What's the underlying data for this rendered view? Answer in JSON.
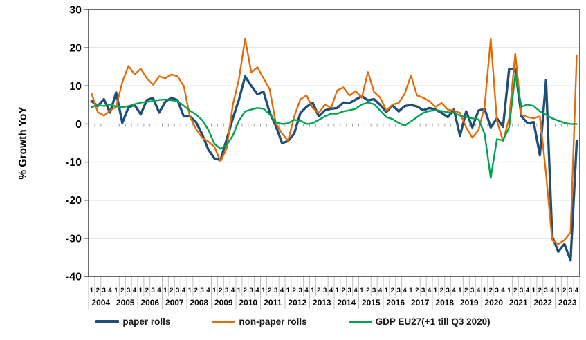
{
  "chart_data": {
    "type": "line",
    "title": "",
    "ylabel": "% Growth YoY",
    "ylim": [
      -40,
      30
    ],
    "y_ticks": [
      30,
      20,
      10,
      0,
      -10,
      -20,
      -30,
      -40
    ],
    "grid": "horizontal-only",
    "legend_position": "bottom-center",
    "x": {
      "quarters": [
        "1",
        "2",
        "3",
        "4"
      ],
      "years": [
        "2004",
        "2005",
        "2006",
        "2007",
        "2008",
        "2009",
        "2010",
        "2011",
        "2012",
        "2013",
        "2014",
        "2015",
        "2016",
        "2017",
        "2018",
        "2019",
        "2020",
        "2021",
        "2022",
        "2023"
      ]
    },
    "colors": {
      "grid": "#BFBFBF",
      "axis_border": "#1a1a1a",
      "tick_separator": "#C0C0C0",
      "zero_axis": "#9A9A9A"
    },
    "series": [
      {
        "name": "paper rolls",
        "id": "paper-rolls",
        "color": "#1F4E79",
        "width": 3.4,
        "values": [
          6,
          4.7,
          6.5,
          3,
          8.3,
          0.3,
          4.4,
          5,
          2.5,
          6.3,
          6.8,
          3,
          5.8,
          6.9,
          6.2,
          2,
          2,
          0.5,
          -2.7,
          -6.7,
          -9,
          -9.5,
          -4,
          1.5,
          6.4,
          12.5,
          10,
          7.8,
          8.5,
          3,
          -0.5,
          -5,
          -4.5,
          -2.5,
          2.9,
          4.5,
          5.6,
          2,
          3.6,
          4,
          4.2,
          5.6,
          5.5,
          6.4,
          7.3,
          6.2,
          6.5,
          5,
          3.1,
          4.9,
          3.3,
          4.7,
          5,
          4.6,
          3.6,
          4.2,
          3.8,
          2.9,
          1.8,
          3.8,
          -3.1,
          3.3,
          -0.9,
          3.5,
          4,
          -0.9,
          1.5,
          -0.7,
          14.5,
          14.3,
          2,
          0.2,
          0.5,
          -8.2,
          11.5,
          -29.5,
          -33.5,
          -31.5,
          -35.8,
          -4.5
        ]
      },
      {
        "name": "non-paper rolls",
        "id": "non-paper-rolls",
        "color": "#E36C09",
        "width": 2.4,
        "values": [
          8,
          3.1,
          2.2,
          3.5,
          4.5,
          11,
          15.2,
          13,
          14.5,
          12,
          10.3,
          12.5,
          12,
          13,
          12.5,
          10,
          2,
          -1.3,
          -3.6,
          -4.6,
          -6,
          -9.8,
          -6.4,
          5.1,
          11.8,
          22.4,
          13.5,
          14.9,
          12,
          9.1,
          0.2,
          -2.5,
          -4.4,
          2,
          6.5,
          7.5,
          4.2,
          2.9,
          5.1,
          4.2,
          8.8,
          9.6,
          7.5,
          8.7,
          6.9,
          13.6,
          8.4,
          6.9,
          3.5,
          5.1,
          5.5,
          8,
          12.7,
          7.5,
          6.9,
          6,
          4.5,
          5.5,
          3.8,
          3.5,
          2.9,
          -0.9,
          -3.6,
          -1.6,
          4.5,
          22.4,
          0.9,
          -4.5,
          1.5,
          18.5,
          2.4,
          1.8,
          1.5,
          2,
          -13,
          -30.5,
          -31.5,
          -30.5,
          -28.5,
          18
        ]
      },
      {
        "name": "GDP EU27(+1 till Q3 2020)",
        "id": "gdp-eu27",
        "color": "#00A350",
        "width": 2.4,
        "values": [
          4.4,
          5,
          4.7,
          5.1,
          4.6,
          4.4,
          4.7,
          5.2,
          5.6,
          5.8,
          6,
          6.3,
          6.4,
          6.2,
          6,
          4.8,
          3.5,
          2.5,
          1,
          -1.5,
          -5.2,
          -6.5,
          -5.5,
          -3,
          0.9,
          3.3,
          3.8,
          4.2,
          4,
          2.5,
          0.5,
          0,
          0.2,
          1.1,
          0.9,
          0,
          0.2,
          1.1,
          2,
          2.7,
          2.7,
          3.3,
          3.6,
          4,
          5.1,
          5.6,
          5.2,
          3.5,
          1.8,
          1.3,
          0.3,
          -0.4,
          0.7,
          1.8,
          2.9,
          3.4,
          3.6,
          3.4,
          3.1,
          2.9,
          2.2,
          1.8,
          1.5,
          1.2,
          -2.5,
          -14.2,
          -4,
          -4.3,
          -0.9,
          13,
          4.5,
          5.1,
          4.7,
          3.3,
          2.4,
          1.5,
          0.9,
          0.3,
          0,
          0
        ]
      }
    ]
  }
}
